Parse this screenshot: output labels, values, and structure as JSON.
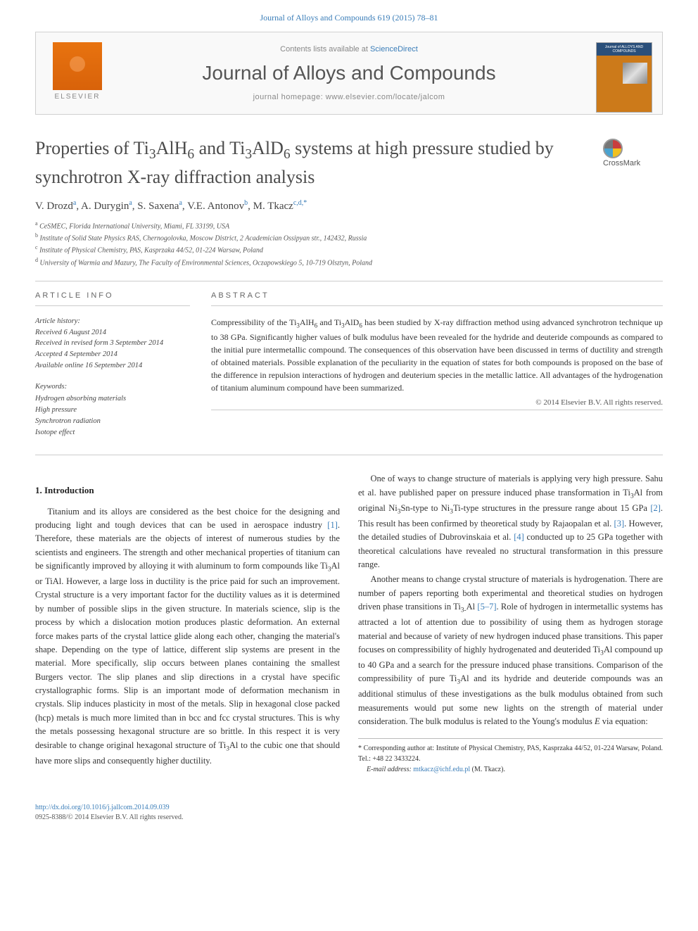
{
  "header": {
    "citation_link": "Journal of Alloys and Compounds 619 (2015) 78–81",
    "contents_text": "Contents lists available at ",
    "contents_link": "ScienceDirect",
    "journal_title": "Journal of Alloys and Compounds",
    "homepage_label": "journal homepage: ",
    "homepage_url": "www.elsevier.com/locate/jalcom",
    "elsevier_label": "ELSEVIER",
    "cover_text": "Journal of\nALLOYS\nAND COMPOUNDS"
  },
  "article": {
    "title_html": "Properties of Ti<sub>3</sub>AlH<sub>6</sub> and Ti<sub>3</sub>AlD<sub>6</sub> systems at high pressure studied by synchrotron X-ray diffraction analysis",
    "crossmark_label": "CrossMark",
    "authors": [
      {
        "name": "V. Drozd",
        "aff": "a"
      },
      {
        "name": "A. Durygin",
        "aff": "a"
      },
      {
        "name": "S. Saxena",
        "aff": "a"
      },
      {
        "name": "V.E. Antonov",
        "aff": "b"
      },
      {
        "name": "M. Tkacz",
        "aff": "c,d,*"
      }
    ],
    "affiliations": [
      {
        "key": "a",
        "text": "CeSMEC, Florida International University, Miami, FL 33199, USA"
      },
      {
        "key": "b",
        "text": "Institute of Solid State Physics RAS, Chernogolovka, Moscow District, 2 Academician Ossipyan str., 142432, Russia"
      },
      {
        "key": "c",
        "text": "Institute of Physical Chemistry, PAS, Kasprzaka 44/52, 01-224 Warsaw, Poland"
      },
      {
        "key": "d",
        "text": "University of Warmia and Mazury, The Faculty of Environmental Sciences, Oczapowskiego 5, 10-719 Olsztyn, Poland"
      }
    ]
  },
  "info": {
    "heading": "ARTICLE INFO",
    "history_label": "Article history:",
    "history": [
      "Received 6 August 2014",
      "Received in revised form 3 September 2014",
      "Accepted 4 September 2014",
      "Available online 16 September 2014"
    ],
    "keywords_label": "Keywords:",
    "keywords": [
      "Hydrogen absorbing materials",
      "High pressure",
      "Synchrotron radiation",
      "Isotope effect"
    ]
  },
  "abstract": {
    "heading": "ABSTRACT",
    "text_html": "Compressibility of the Ti<sub>3</sub>AlH<sub>6</sub> and Ti<sub>3</sub>AlD<sub>6</sub> has been studied by X-ray diffraction method using advanced synchrotron technique up to 38 GPa. Significantly higher values of bulk modulus have been revealed for the hydride and deuteride compounds as compared to the initial pure intermetallic compound. The consequences of this observation have been discussed in terms of ductility and strength of obtained materials. Possible explanation of the peculiarity in the equation of states for both compounds is proposed on the base of the difference in repulsion interactions of hydrogen and deuterium species in the metallic lattice. All advantages of the hydrogenation of titanium aluminum compound have been summarized.",
    "copyright": "© 2014 Elsevier B.V. All rights reserved."
  },
  "body": {
    "sec1_heading": "1. Introduction",
    "p1_html": "Titanium and its alloys are considered as the best choice for the designing and producing light and tough devices that can be used in aerospace industry <a href=\"#\">[1]</a>. Therefore, these materials are the objects of interest of numerous studies by the scientists and engineers. The strength and other mechanical properties of titanium can be significantly improved by alloying it with aluminum to form compounds like Ti<sub>3</sub>Al or TiAl. However, a large loss in ductility is the price paid for such an improvement. Crystal structure is a very important factor for the ductility values as it is determined by number of possible slips in the given structure. In materials science, slip is the process by which a dislocation motion produces plastic deformation. An external force makes parts of the crystal lattice glide along each other, changing the material's shape. Depending on the type of lattice, different slip systems are present in the material. More specifically, slip occurs between planes containing the smallest Burgers vector. The slip planes and slip directions in a crystal have specific crystallographic forms. Slip is an important mode of deformation mechanism in crystals. Slip induces plasticity in most of the metals. Slip in hexagonal close packed (hcp) metals is much more limited than in bcc and fcc crystal structures. This is why the metals possessing hexagonal structure are so brittle. In this respect it is very desirable to change original hexagonal structure of Ti<sub>3</sub>Al to the cubic one that should have more slips and consequently higher ductility.",
    "p2_html": "One of ways to change structure of materials is applying very high pressure. Sahu et al. have published paper on pressure induced phase transformation in Ti<sub>3</sub>Al from original Ni<sub>3</sub>Sn-type to Ni<sub>3</sub>Ti-type structures in the pressure range about 15 GPa <a href=\"#\">[2]</a>. This result has been confirmed by theoretical study by Rajaopalan et al. <a href=\"#\">[3]</a>. However, the detailed studies of Dubrovinskaia et al. <a href=\"#\">[4]</a> conducted up to 25 GPa together with theoretical calculations have revealed no structural transformation in this pressure range.",
    "p3_html": "Another means to change crystal structure of materials is hydrogenation. There are number of papers reporting both experimental and theoretical studies on hydrogen driven phase transitions in Ti<sub>3-</sub>Al <a href=\"#\">[5–7]</a>. Role of hydrogen in intermetallic systems has attracted a lot of attention due to possibility of using them as hydrogen storage material and because of variety of new hydrogen induced phase transitions. This paper focuses on compressibility of highly hydrogenated and deuterided Ti<sub>3</sub>Al compound up to 40 GPa and a search for the pressure induced phase transitions. Comparison of the compressibility of pure Ti<sub>3</sub>Al and its hydride and deuteride compounds was an additional stimulus of these investigations as the bulk modulus obtained from such measurements would put some new lights on the strength of material under consideration. The bulk modulus is related to the Young's modulus <i>E</i> via equation:"
  },
  "footnote": {
    "corr": "* Corresponding author at: Institute of Physical Chemistry, PAS, Kasprzaka 44/52, 01-224 Warsaw, Poland. Tel.: +48 22 3433224.",
    "email_label": "E-mail address: ",
    "email": "mtkacz@ichf.edu.pl",
    "email_who": " (M. Tkacz)."
  },
  "doi": {
    "link": "http://dx.doi.org/10.1016/j.jallcom.2014.09.039",
    "issn": "0925-8388/© 2014 Elsevier B.V. All rights reserved."
  },
  "colors": {
    "link": "#3a7db8",
    "text": "#333333",
    "rule": "#cccccc"
  }
}
